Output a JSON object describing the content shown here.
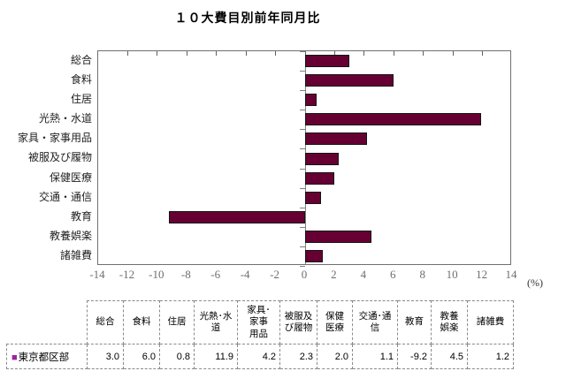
{
  "title": "１０大費目別前年同月比",
  "unit_label": "(%)",
  "colors": {
    "bar": "#660033",
    "legend_marker": "#a020a0",
    "axis": "#808080"
  },
  "chart_data": {
    "type": "bar",
    "orientation": "horizontal",
    "title": "１０大費目別前年同月比",
    "xlabel": "(%)",
    "xlim": [
      -14,
      14
    ],
    "xticks": [
      -14,
      -12,
      -10,
      -8,
      -6,
      -4,
      -2,
      0,
      2,
      4,
      6,
      8,
      10,
      12,
      14
    ],
    "grid": false,
    "categories": [
      "総合",
      "食料",
      "住居",
      "光熱・水道",
      "家具・家事用品",
      "被服及び履物",
      "保健医療",
      "交通・通信",
      "教育",
      "教養娯楽",
      "諸雑費"
    ],
    "series": [
      {
        "name": "東京都区部",
        "values": [
          3.0,
          6.0,
          0.8,
          11.9,
          4.2,
          2.3,
          2.0,
          1.1,
          -9.2,
          4.5,
          1.2
        ]
      }
    ]
  },
  "table": {
    "legend_marker": "■",
    "row_label": "東京都区部",
    "headers": [
      "総合",
      "食料",
      "住居",
      "光熱･水\n道",
      "家具･\n家事\n用品",
      "被服及\nび履物",
      "保健\n医療",
      "交通･通\n信",
      "教育",
      "教養\n娯楽",
      "諸雑費"
    ],
    "values": [
      "3.0",
      "6.0",
      "0.8",
      "11.9",
      "4.2",
      "2.3",
      "2.0",
      "1.1",
      "-9.2",
      "4.5",
      "1.2"
    ]
  }
}
